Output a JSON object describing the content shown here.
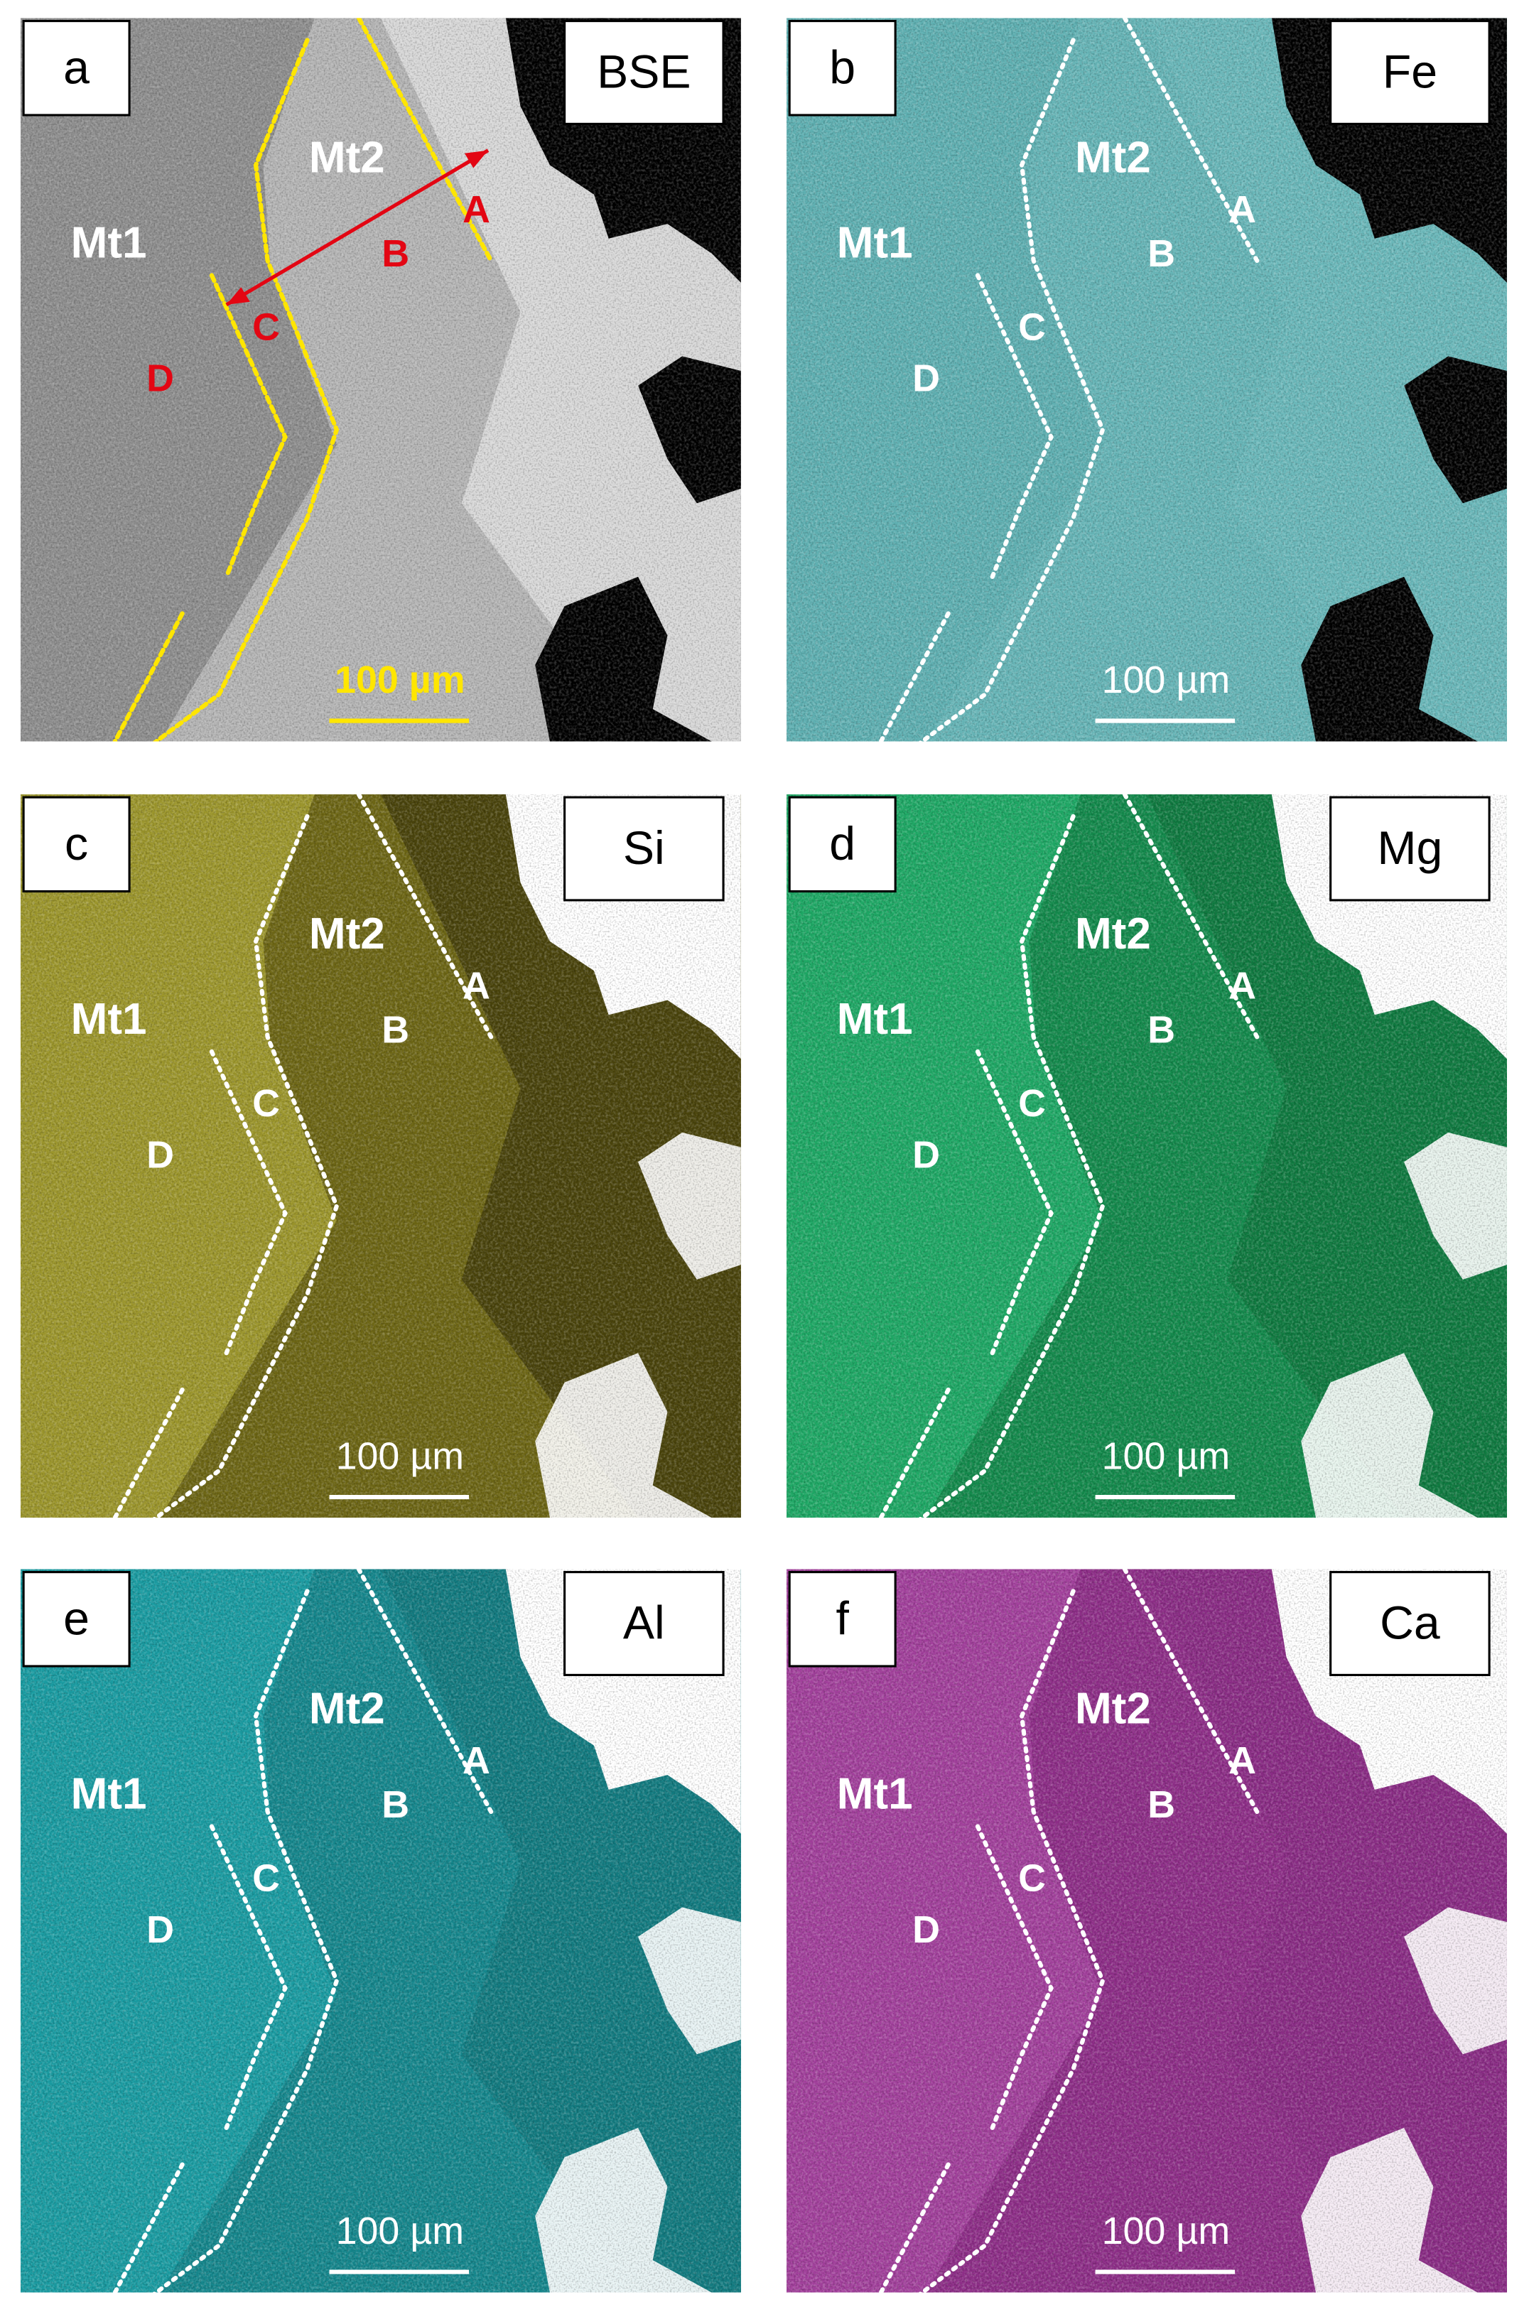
{
  "panels": [
    {
      "letter": "a",
      "element": "BSE",
      "labels": {
        "mt1": "Mt1",
        "mt2": "Mt2",
        "a": "A",
        "b": "B",
        "c": "C",
        "d": "D"
      },
      "scale_bar": "100 µm"
    },
    {
      "letter": "b",
      "element": "Fe",
      "labels": {
        "mt1": "Mt1",
        "mt2": "Mt2",
        "a": "A",
        "b": "B",
        "c": "C",
        "d": "D"
      },
      "scale_bar": "100 µm"
    },
    {
      "letter": "c",
      "element": "Si",
      "labels": {
        "mt1": "Mt1",
        "mt2": "Mt2",
        "a": "A",
        "b": "B",
        "c": "C",
        "d": "D"
      },
      "scale_bar": "100 µm"
    },
    {
      "letter": "d",
      "element": "Mg",
      "labels": {
        "mt1": "Mt1",
        "mt2": "Mt2",
        "a": "A",
        "b": "B",
        "c": "C",
        "d": "D"
      },
      "scale_bar": "100 µm"
    },
    {
      "letter": "e",
      "element": "Al",
      "labels": {
        "mt1": "Mt1",
        "mt2": "Mt2",
        "a": "A",
        "b": "B",
        "c": "C",
        "d": "D"
      },
      "scale_bar": "100 µm"
    },
    {
      "letter": "f",
      "element": "Ca",
      "labels": {
        "mt1": "Mt1",
        "mt2": "Mt2",
        "a": "A",
        "b": "B",
        "c": "C",
        "d": "D"
      },
      "scale_bar": "100 µm"
    }
  ]
}
